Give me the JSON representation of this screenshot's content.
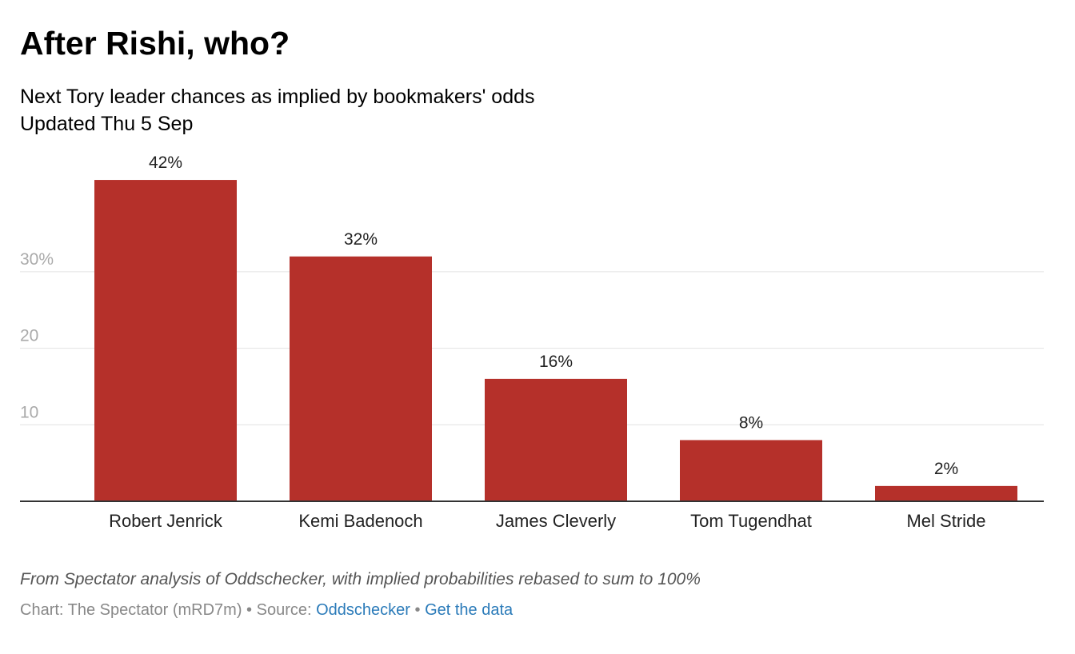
{
  "header": {
    "title": "After Rishi, who?",
    "subtitle": "Next Tory leader chances as implied by bookmakers' odds",
    "updated": "Updated Thu 5 Sep"
  },
  "chart_data": {
    "type": "bar",
    "categories": [
      "Robert Jenrick",
      "Kemi Badenoch",
      "James Cleverly",
      "Tom Tugendhat",
      "Mel Stride"
    ],
    "values": [
      42,
      32,
      16,
      8,
      2
    ],
    "value_labels": [
      "42%",
      "32%",
      "16%",
      "8%",
      "2%"
    ],
    "yticks": [
      10,
      20,
      30
    ],
    "ytick_labels": [
      "10",
      "20",
      "30%"
    ],
    "ylim": [
      0,
      42
    ],
    "grid": true,
    "bar_color": "#b5302a"
  },
  "footer": {
    "notes": "From Spectator analysis of Oddschecker, with implied probabilities rebased to sum to 100%",
    "credit": "Chart: The Spectator (mRD7m)",
    "separator": " • ",
    "source_prefix": "Source: ",
    "source_link": "Oddschecker",
    "data_link": "Get the data"
  }
}
